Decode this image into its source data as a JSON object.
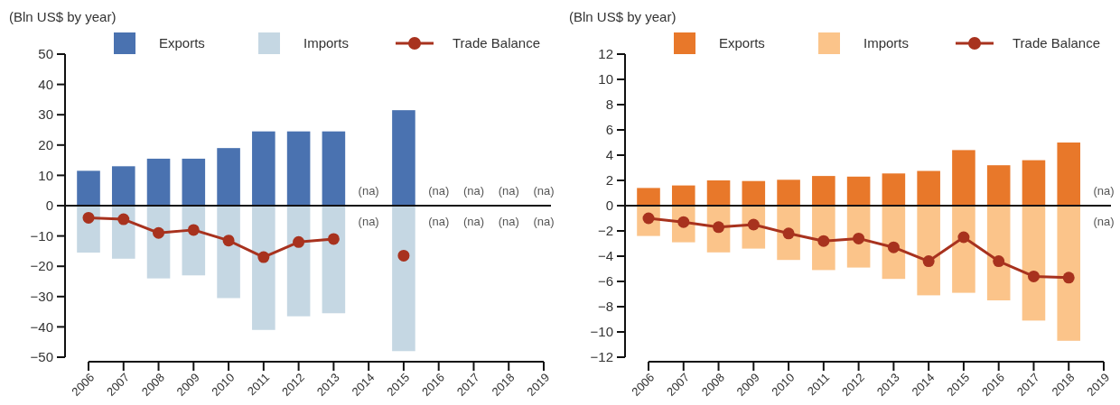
{
  "chart_data": [
    {
      "type": "bar",
      "ylabel": "(Bln US$ by year)",
      "stacked": true,
      "categories": [
        "2006",
        "2007",
        "2008",
        "2009",
        "2010",
        "2011",
        "2012",
        "2013",
        "2014",
        "2015",
        "2016",
        "2017",
        "2018",
        "2019"
      ],
      "series": [
        {
          "name": "Exports",
          "color": "#4a72b0",
          "values": [
            11.5,
            13,
            15.5,
            15.5,
            19,
            24.5,
            24.5,
            24.5,
            null,
            31.5,
            null,
            null,
            null,
            null
          ],
          "value_labels": [
            null,
            null,
            null,
            null,
            null,
            null,
            null,
            null,
            "(na)",
            null,
            "(na)",
            "(na)",
            "(na)",
            "(na)"
          ]
        },
        {
          "name": "Imports",
          "color": "#c5d7e3",
          "values": [
            -15.5,
            -17.5,
            -24,
            -23,
            -30.5,
            -41,
            -36.5,
            -35.5,
            null,
            -48,
            null,
            null,
            null,
            null
          ],
          "value_labels": [
            null,
            null,
            null,
            null,
            null,
            null,
            null,
            null,
            "(na)",
            null,
            "(na)",
            "(na)",
            "(na)",
            "(na)"
          ]
        },
        {
          "name": "Trade Balance",
          "type": "line",
          "color": "#a8321e",
          "values": [
            -4,
            -4.5,
            -9,
            -8,
            -11.5,
            -17,
            -12,
            -11,
            null,
            -16.5,
            null,
            null,
            null,
            null
          ]
        }
      ],
      "ylim": [
        -50,
        50
      ],
      "yticks": [
        -50,
        -40,
        -30,
        -20,
        -10,
        0,
        10,
        20,
        30,
        40,
        50
      ],
      "legend": "top",
      "marker": "circle"
    },
    {
      "type": "bar",
      "ylabel": "(Bln US$ by year)",
      "stacked": true,
      "categories": [
        "2006",
        "2007",
        "2008",
        "2009",
        "2010",
        "2011",
        "2012",
        "2013",
        "2014",
        "2015",
        "2016",
        "2017",
        "2018",
        "2019"
      ],
      "series": [
        {
          "name": "Exports",
          "color": "#e8782a",
          "values": [
            1.4,
            1.6,
            2,
            1.95,
            2.05,
            2.35,
            2.3,
            2.55,
            2.75,
            4.4,
            3.2,
            3.6,
            5,
            null
          ],
          "value_labels": [
            null,
            null,
            null,
            null,
            null,
            null,
            null,
            null,
            null,
            null,
            null,
            null,
            null,
            "(na)"
          ]
        },
        {
          "name": "Imports",
          "color": "#fbc48a",
          "values": [
            -2.4,
            -2.9,
            -3.7,
            -3.4,
            -4.3,
            -5.1,
            -4.9,
            -5.8,
            -7.1,
            -6.9,
            -7.5,
            -9.1,
            -10.7,
            null
          ],
          "value_labels": [
            null,
            null,
            null,
            null,
            null,
            null,
            null,
            null,
            null,
            null,
            null,
            null,
            null,
            "(na)"
          ]
        },
        {
          "name": "Trade Balance",
          "type": "line",
          "color": "#a8321e",
          "values": [
            -1,
            -1.3,
            -1.7,
            -1.5,
            -2.2,
            -2.8,
            -2.6,
            -3.3,
            -4.4,
            -2.5,
            -4.4,
            -5.6,
            -5.7,
            null
          ]
        }
      ],
      "ylim": [
        -12,
        12
      ],
      "yticks": [
        -12,
        -10,
        -8,
        -6,
        -4,
        -2,
        0,
        2,
        4,
        6,
        8,
        10,
        12
      ],
      "legend": "top",
      "marker": "circle"
    }
  ]
}
